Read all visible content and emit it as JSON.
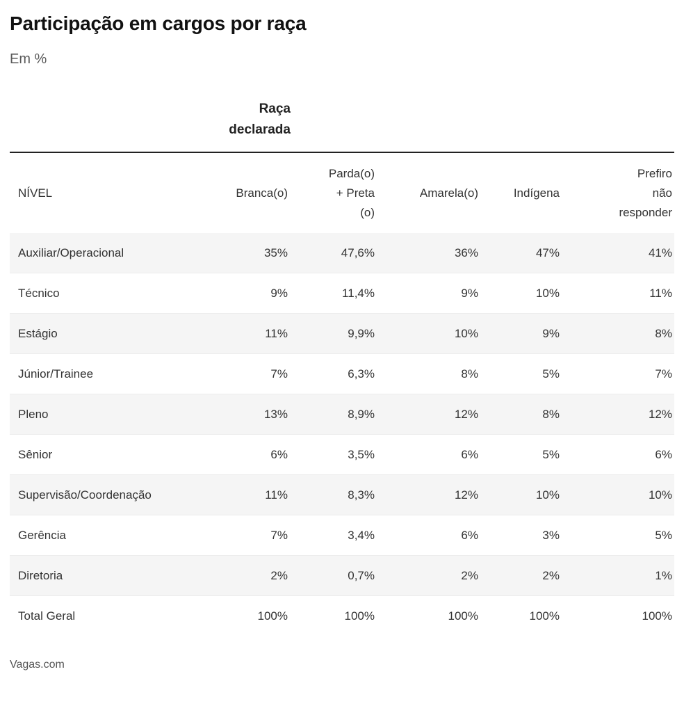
{
  "header": {
    "title": "Participação em cargos por raça",
    "subtitle": "Em %"
  },
  "table": {
    "group_header": "Raça\ndeclarada",
    "columns": [
      "NÍVEL",
      "Branca(o)",
      "Parda(o)\n+ Preta\n(o)",
      "Amarela(o)",
      "Indígena",
      "Prefiro\nnão\nresponder"
    ],
    "rows": [
      {
        "label": "Auxiliar/Operacional",
        "values": [
          "35%",
          "47,6%",
          "36%",
          "47%",
          "41%"
        ]
      },
      {
        "label": "Técnico",
        "values": [
          "9%",
          "11,4%",
          "9%",
          "10%",
          "11%"
        ]
      },
      {
        "label": "Estágio",
        "values": [
          "11%",
          "9,9%",
          "10%",
          "9%",
          "8%"
        ]
      },
      {
        "label": "Júnior/Trainee",
        "values": [
          "7%",
          "6,3%",
          "8%",
          "5%",
          "7%"
        ]
      },
      {
        "label": "Pleno",
        "values": [
          "13%",
          "8,9%",
          "12%",
          "8%",
          "12%"
        ]
      },
      {
        "label": "Sênior",
        "values": [
          "6%",
          "3,5%",
          "6%",
          "5%",
          "6%"
        ]
      },
      {
        "label": "Supervisão/Coordenação",
        "values": [
          "11%",
          "8,3%",
          "12%",
          "10%",
          "10%"
        ]
      },
      {
        "label": "Gerência",
        "values": [
          "7%",
          "3,4%",
          "6%",
          "3%",
          "5%"
        ]
      },
      {
        "label": "Diretoria",
        "values": [
          "2%",
          "0,7%",
          "2%",
          "2%",
          "1%"
        ]
      },
      {
        "label": "Total Geral",
        "values": [
          "100%",
          "100%",
          "100%",
          "100%",
          "100%"
        ]
      }
    ]
  },
  "footer": {
    "source": "Vagas.com"
  },
  "colors": {
    "rule": "#222222",
    "row_stripe": "#f5f5f5",
    "title_text": "#111111",
    "body_text": "#333333",
    "muted_text": "#5a5a5a"
  },
  "chart_data": {
    "type": "table",
    "title": "Participação em cargos por raça",
    "subtitle": "Em %",
    "unit": "%",
    "group_header": "Raça declarada",
    "row_label_header": "NÍVEL",
    "columns": [
      "Branca(o)",
      "Parda(o) + Preta(o)",
      "Amarela(o)",
      "Indígena",
      "Prefiro não responder"
    ],
    "row_labels": [
      "Auxiliar/Operacional",
      "Técnico",
      "Estágio",
      "Júnior/Trainee",
      "Pleno",
      "Sênior",
      "Supervisão/Coordenação",
      "Gerência",
      "Diretoria",
      "Total Geral"
    ],
    "values": [
      [
        35,
        47.6,
        36,
        47,
        41
      ],
      [
        9,
        11.4,
        9,
        10,
        11
      ],
      [
        11,
        9.9,
        10,
        9,
        8
      ],
      [
        7,
        6.3,
        8,
        5,
        7
      ],
      [
        13,
        8.9,
        12,
        8,
        12
      ],
      [
        6,
        3.5,
        6,
        5,
        6
      ],
      [
        11,
        8.3,
        12,
        10,
        10
      ],
      [
        7,
        3.4,
        6,
        3,
        5
      ],
      [
        2,
        0.7,
        2,
        2,
        1
      ],
      [
        100,
        100,
        100,
        100,
        100
      ]
    ],
    "source": "Vagas.com"
  }
}
